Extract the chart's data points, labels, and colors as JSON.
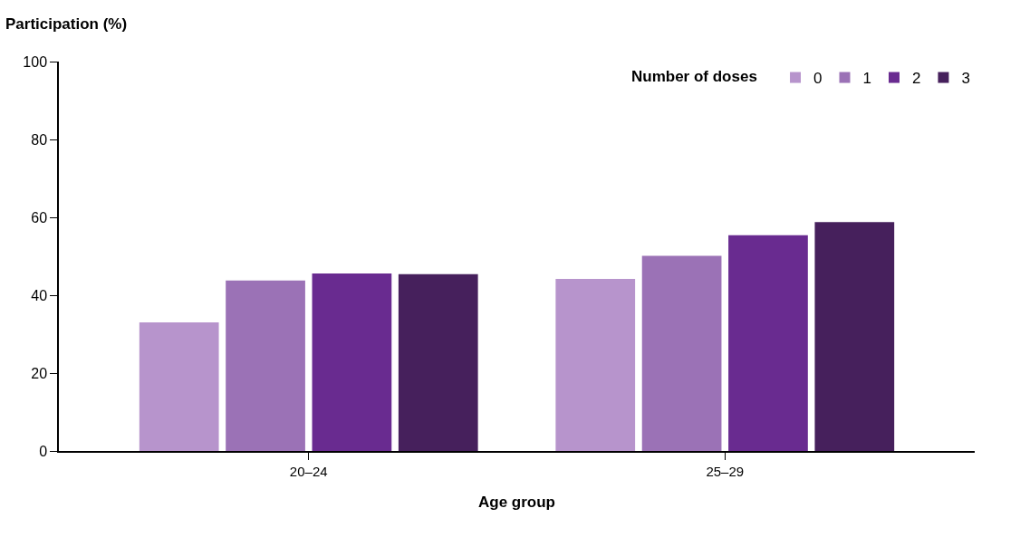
{
  "chart_data": {
    "type": "bar",
    "ylabel": "Participation (%)",
    "xlabel": "Age group",
    "legend_title": "Number of doses",
    "categories": [
      "20–24",
      "25–29"
    ],
    "series": [
      {
        "name": "0",
        "color": "#b794cc",
        "values": [
          33,
          44.2
        ]
      },
      {
        "name": "1",
        "color": "#9b72b6",
        "values": [
          43.8,
          50.1
        ]
      },
      {
        "name": "2",
        "color": "#692b90",
        "values": [
          45.6,
          55.4
        ]
      },
      {
        "name": "3",
        "color": "#46205c",
        "values": [
          45.4,
          58.8
        ]
      }
    ],
    "ylim": [
      0,
      100
    ],
    "yticks": [
      0,
      20,
      40,
      60,
      80,
      100
    ],
    "grid": false,
    "legend": "top right"
  }
}
